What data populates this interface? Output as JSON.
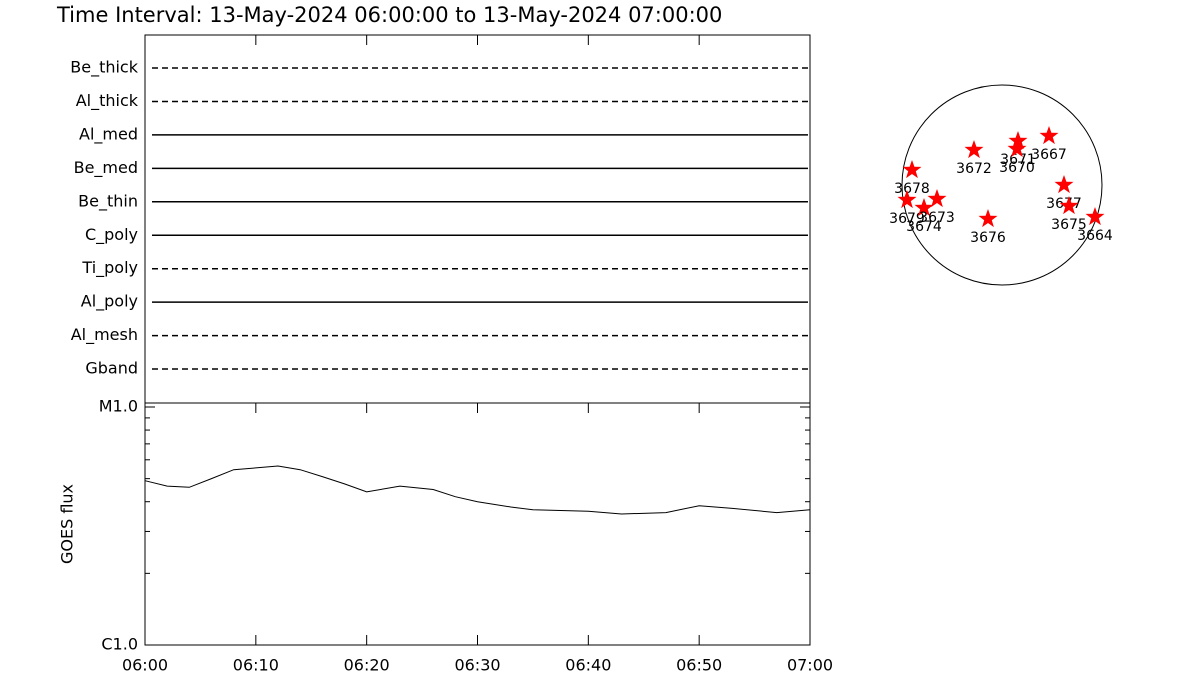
{
  "title": "Time Interval: 13-May-2024 06:00:00 to 13-May-2024 07:00:00",
  "filters": [
    {
      "name": "Be_thick",
      "style": "dashed"
    },
    {
      "name": "Al_thick",
      "style": "dashed"
    },
    {
      "name": "Al_med",
      "style": "solid"
    },
    {
      "name": "Be_med",
      "style": "solid"
    },
    {
      "name": "Be_thin",
      "style": "solid"
    },
    {
      "name": "C_poly",
      "style": "solid"
    },
    {
      "name": "Ti_poly",
      "style": "dashed"
    },
    {
      "name": "Al_poly",
      "style": "solid"
    },
    {
      "name": "Al_mesh",
      "style": "dashed"
    },
    {
      "name": "Gband",
      "style": "dashed"
    }
  ],
  "chart_data": {
    "type": "line",
    "ylabel": "GOES flux",
    "log_scale": true,
    "xlim": [
      "06:00",
      "07:00"
    ],
    "xticks": [
      "06:00",
      "06:10",
      "06:20",
      "06:30",
      "06:40",
      "06:50",
      "07:00"
    ],
    "ylim": [
      1e-06,
      1e-05
    ],
    "yticks": [
      {
        "value": 1e-06,
        "label": "C1.0"
      },
      {
        "value": 1e-05,
        "label": "M1.0"
      }
    ],
    "yminorticks": [
      2e-06,
      3e-06,
      4e-06,
      5e-06,
      6e-06,
      7e-06,
      8e-06,
      9e-06
    ],
    "series": [
      {
        "name": "GOES",
        "color": "#000000",
        "x": [
          "06:00",
          "06:02",
          "06:04",
          "06:06",
          "06:08",
          "06:10",
          "06:12",
          "06:14",
          "06:16",
          "06:18",
          "06:20",
          "06:23",
          "06:26",
          "06:28",
          "06:30",
          "06:33",
          "06:35",
          "06:40",
          "06:43",
          "06:47",
          "06:50",
          "06:53",
          "06:57",
          "07:00"
        ],
        "values": [
          4.9e-06,
          4.65e-06,
          4.6e-06,
          5e-06,
          5.45e-06,
          5.55e-06,
          5.65e-06,
          5.45e-06,
          5.1e-06,
          4.75e-06,
          4.4e-06,
          4.65e-06,
          4.5e-06,
          4.2e-06,
          4e-06,
          3.8e-06,
          3.7e-06,
          3.65e-06,
          3.55e-06,
          3.6e-06,
          3.85e-06,
          3.75e-06,
          3.6e-06,
          3.7e-06
        ]
      }
    ]
  },
  "sun_map": {
    "type": "scatter",
    "xlim": [
      -1,
      1
    ],
    "ylim": [
      -1,
      1
    ],
    "color": "#ff0000",
    "regions": [
      {
        "label": "3678",
        "x": -0.9,
        "y": 0.15
      },
      {
        "label": "3679",
        "x": -0.95,
        "y": -0.15
      },
      {
        "label": "3674",
        "x": -0.78,
        "y": -0.23
      },
      {
        "label": "3673",
        "x": -0.65,
        "y": -0.14
      },
      {
        "label": "3672",
        "x": -0.28,
        "y": 0.35
      },
      {
        "label": "3671",
        "x": 0.16,
        "y": 0.44
      },
      {
        "label": "3670",
        "x": 0.15,
        "y": 0.36
      },
      {
        "label": "3667",
        "x": 0.47,
        "y": 0.49
      },
      {
        "label": "3676",
        "x": -0.14,
        "y": -0.34
      },
      {
        "label": "3677",
        "x": 0.62,
        "y": 0.0
      },
      {
        "label": "3675",
        "x": 0.67,
        "y": -0.21
      },
      {
        "label": "3664",
        "x": 0.93,
        "y": -0.32
      }
    ]
  }
}
